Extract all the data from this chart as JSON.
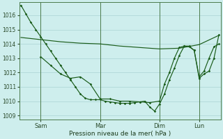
{
  "xlabel": "Pression niveau de la mer( hPa )",
  "bg_color": "#ceeeed",
  "grid_color": "#aad4d4",
  "line_color": "#1a5c1a",
  "ylim": [
    1008.7,
    1016.9
  ],
  "yticks": [
    1009,
    1010,
    1011,
    1012,
    1013,
    1014,
    1015,
    1016
  ],
  "xtick_labels": [
    "Sam",
    "Mar",
    "Dim",
    "Lun"
  ],
  "xtick_positions": [
    24,
    96,
    168,
    216
  ],
  "total_hours": 240,
  "line1_t": [
    0,
    6,
    12,
    18,
    24,
    30,
    36,
    42,
    48,
    54,
    60,
    66,
    72,
    78,
    84,
    90,
    96,
    102,
    108,
    114,
    120,
    126,
    132,
    138,
    144,
    150,
    156,
    162,
    168,
    174,
    180,
    186,
    192,
    198,
    204,
    210,
    216,
    222,
    228,
    234,
    240
  ],
  "line1_y": [
    1016.7,
    1016.1,
    1015.5,
    1015.0,
    1014.5,
    1014.0,
    1013.5,
    1013.0,
    1012.5,
    1012.0,
    1011.5,
    1011.0,
    1010.5,
    1010.2,
    1010.1,
    1010.1,
    1010.1,
    1010.0,
    1009.95,
    1009.9,
    1009.85,
    1009.85,
    1009.85,
    1009.9,
    1009.95,
    1010.0,
    1009.6,
    1009.3,
    1009.8,
    1010.5,
    1011.5,
    1012.3,
    1013.2,
    1013.85,
    1013.8,
    1013.55,
    1011.7,
    1012.1,
    1013.0,
    1013.8,
    1014.0
  ],
  "line2_t": [
    0,
    24,
    48,
    72,
    96,
    120,
    144,
    168,
    192,
    216,
    240
  ],
  "line2_y": [
    1014.45,
    1014.3,
    1014.15,
    1014.05,
    1014.0,
    1013.85,
    1013.75,
    1013.65,
    1013.7,
    1013.95,
    1014.6
  ],
  "line3_t": [
    24,
    36,
    48,
    60,
    72,
    84,
    96,
    108,
    120,
    132,
    144,
    156,
    168,
    174,
    180,
    186,
    192,
    198,
    204,
    210,
    216,
    222,
    228,
    234,
    240
  ],
  "line3_y": [
    1013.1,
    1012.5,
    1011.9,
    1011.6,
    1011.7,
    1011.2,
    1010.15,
    1010.15,
    1010.0,
    1010.0,
    1009.95,
    1009.9,
    1010.0,
    1011.2,
    1012.0,
    1013.0,
    1013.75,
    1013.85,
    1013.85,
    1013.55,
    1011.6,
    1011.9,
    1012.1,
    1013.0,
    1014.65
  ],
  "vline_positions": [
    24,
    96,
    168,
    216
  ],
  "figsize": [
    3.2,
    2.0
  ],
  "dpi": 100
}
